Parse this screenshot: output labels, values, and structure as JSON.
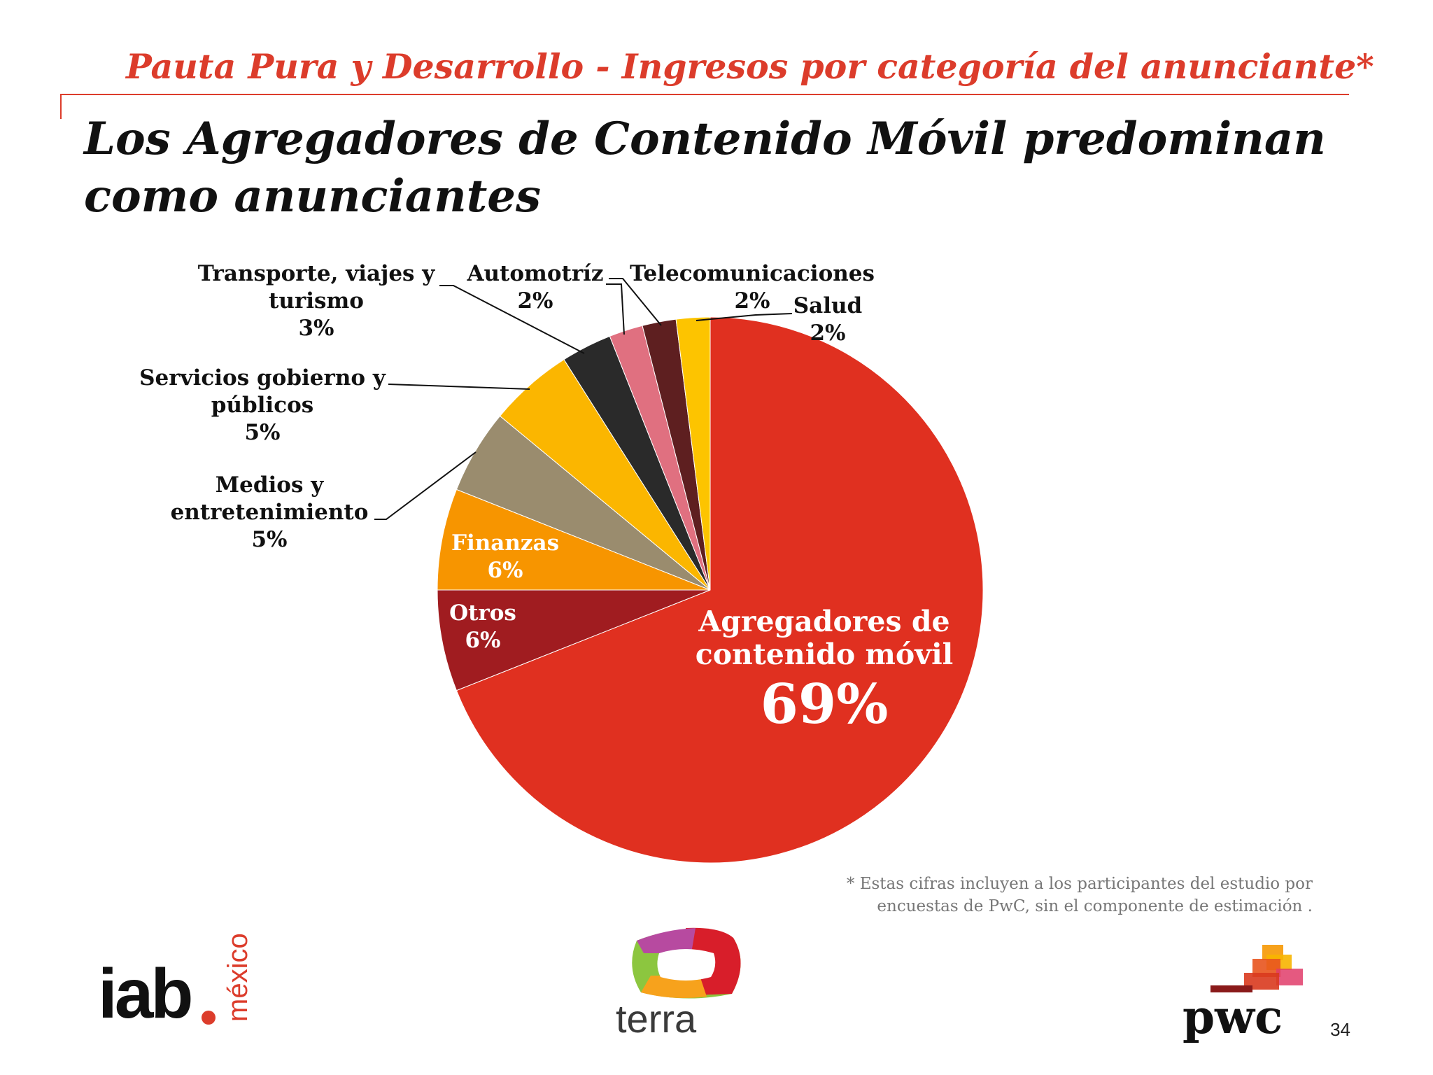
{
  "header": {
    "supertitle": "Pauta Pura y Desarrollo - Ingresos por categoría del anunciante*",
    "title_line1": "Los Agregadores de Contenido Móvil predominan",
    "title_line2": "como anunciantes"
  },
  "chart_data": {
    "type": "pie",
    "slices": [
      {
        "label": [
          "Agregadores de",
          "contenido móvil"
        ],
        "value": 69,
        "pct": "69%",
        "color": "#e03020"
      },
      {
        "label": [
          "Otros"
        ],
        "value": 6,
        "pct": "6%",
        "color": "#a01c20"
      },
      {
        "label": [
          "Finanzas"
        ],
        "value": 6,
        "pct": "6%",
        "color": "#f79500"
      },
      {
        "label": [
          "Medios y",
          "entretenimiento"
        ],
        "value": 5,
        "pct": "5%",
        "color": "#9a8c6e"
      },
      {
        "label": [
          "Servicios gobierno y",
          "públicos"
        ],
        "value": 5,
        "pct": "5%",
        "color": "#fbb600"
      },
      {
        "label": [
          "Transporte, viajes y",
          "turismo"
        ],
        "value": 3,
        "pct": "3%",
        "color": "#2a2a2a"
      },
      {
        "label": [
          "Automotríz"
        ],
        "value": 2,
        "pct": "2%",
        "color": "#e07080"
      },
      {
        "label": [
          "Telecomunicaciones"
        ],
        "value": 2,
        "pct": "2%",
        "color": "#5e1f20"
      },
      {
        "label": [
          "Salud"
        ],
        "value": 2,
        "pct": "2%",
        "color": "#fdc400"
      }
    ]
  },
  "footnote": {
    "line1": "* Estas cifras incluyen a los participantes del estudio por",
    "line2": "encuestas de PwC, sin el componente de estimación ."
  },
  "logos": {
    "iab_text": "iab",
    "iab_mexico": "méxico",
    "terra_text": "terra",
    "pwc_text": "pwc"
  },
  "page_number": "34"
}
